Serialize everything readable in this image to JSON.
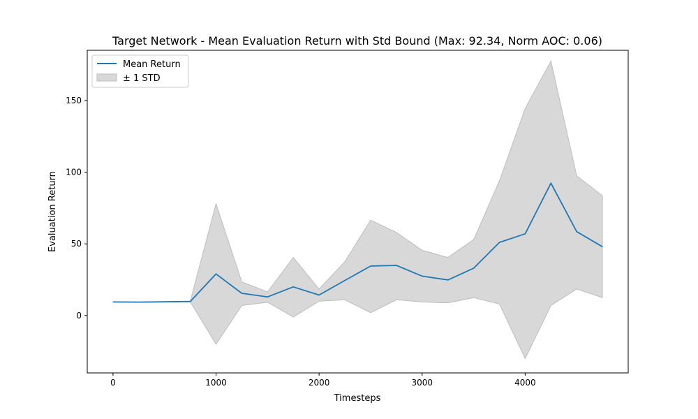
{
  "chart_data": {
    "type": "line",
    "title": "Target Network - Mean Evaluation Return with Std Bound (Max: 92.34, Norm AOC: 0.06)",
    "xlabel": "Timesteps",
    "ylabel": "Evaluation Return",
    "xlim": [
      -250,
      5000
    ],
    "ylim": [
      -40,
      185
    ],
    "xticks": [
      0,
      1000,
      2000,
      3000,
      4000
    ],
    "yticks": [
      0,
      50,
      100,
      150
    ],
    "grid": false,
    "legend_position": "top-left",
    "x": [
      0,
      250,
      500,
      750,
      1000,
      1250,
      1500,
      1750,
      2000,
      2250,
      2500,
      2750,
      3000,
      3250,
      3500,
      3750,
      4000,
      4250,
      4500,
      4750
    ],
    "series": [
      {
        "name": "Mean Return",
        "color": "#1f77b4",
        "values": [
          9.5,
          9.4,
          9.6,
          9.8,
          29.0,
          15.5,
          13.0,
          20.0,
          14.3,
          24.5,
          34.5,
          35.0,
          27.5,
          24.8,
          33.0,
          51.0,
          57.0,
          92.34,
          58.5,
          48.0
        ]
      }
    ],
    "band": {
      "name": "± 1 STD",
      "color": "#d8d8d8",
      "edge_color": "#bdbdbd",
      "upper": [
        9.6,
        9.5,
        9.7,
        10.0,
        78.0,
        23.5,
        16.5,
        40.5,
        18.5,
        37.5,
        66.5,
        58.0,
        45.5,
        40.5,
        53.0,
        94.0,
        144.5,
        177.5,
        97.5,
        83.5
      ],
      "lower": [
        9.4,
        9.3,
        9.5,
        9.6,
        -20.0,
        7.0,
        9.3,
        -1.0,
        10.0,
        11.0,
        2.0,
        11.0,
        9.5,
        8.8,
        12.5,
        8.0,
        -30.0,
        7.0,
        18.5,
        12.5
      ]
    }
  }
}
